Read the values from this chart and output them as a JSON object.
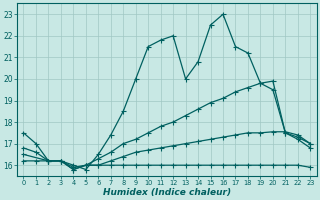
{
  "xlabel": "Humidex (Indice chaleur)",
  "background_color": "#c8e8e4",
  "grid_color": "#a0c8c4",
  "line_color": "#006060",
  "xlim": [
    -0.5,
    23.5
  ],
  "ylim": [
    15.5,
    23.5
  ],
  "yticks": [
    16,
    17,
    18,
    19,
    20,
    21,
    22,
    23
  ],
  "xticks": [
    0,
    1,
    2,
    3,
    4,
    5,
    6,
    7,
    8,
    9,
    10,
    11,
    12,
    13,
    14,
    15,
    16,
    17,
    18,
    19,
    20,
    21,
    22,
    23
  ],
  "line1_x": [
    0,
    1,
    2,
    3,
    4,
    5,
    6,
    7,
    8,
    9,
    10,
    11,
    12,
    13,
    14,
    15,
    16,
    17,
    18,
    19,
    20,
    21,
    22,
    23
  ],
  "line1_y": [
    17.5,
    17.0,
    16.2,
    16.2,
    16.0,
    15.8,
    16.5,
    17.4,
    18.5,
    20.0,
    21.5,
    21.8,
    22.0,
    20.0,
    20.8,
    22.5,
    23.0,
    21.5,
    21.2,
    19.8,
    19.5,
    17.5,
    17.2,
    16.8
  ],
  "line2_x": [
    0,
    1,
    2,
    3,
    4,
    5,
    6,
    7,
    8,
    9,
    10,
    11,
    12,
    13,
    14,
    15,
    16,
    17,
    18,
    19,
    20,
    21,
    22,
    23
  ],
  "line2_y": [
    16.2,
    16.2,
    16.2,
    16.2,
    15.8,
    16.0,
    16.0,
    16.0,
    16.0,
    16.0,
    16.0,
    16.0,
    16.0,
    16.0,
    16.0,
    16.0,
    16.0,
    16.0,
    16.0,
    16.0,
    16.0,
    16.0,
    16.0,
    15.9
  ],
  "line3_x": [
    0,
    1,
    2,
    3,
    4,
    5,
    6,
    7,
    8,
    9,
    10,
    11,
    12,
    13,
    14,
    15,
    16,
    17,
    18,
    19,
    20,
    21,
    22,
    23
  ],
  "line3_y": [
    16.8,
    16.6,
    16.2,
    16.2,
    15.9,
    16.0,
    16.3,
    16.6,
    17.0,
    17.2,
    17.5,
    17.8,
    18.0,
    18.3,
    18.6,
    18.9,
    19.1,
    19.4,
    19.6,
    19.8,
    19.9,
    17.5,
    17.3,
    17.0
  ],
  "line4_x": [
    0,
    2,
    3,
    4,
    5,
    6,
    7,
    8,
    9,
    10,
    11,
    12,
    13,
    14,
    15,
    16,
    17,
    18,
    19,
    20,
    21,
    22,
    23
  ],
  "line4_y": [
    16.5,
    16.2,
    16.2,
    15.8,
    16.0,
    16.0,
    16.2,
    16.4,
    16.6,
    16.7,
    16.8,
    16.9,
    17.0,
    17.1,
    17.2,
    17.3,
    17.4,
    17.5,
    17.5,
    17.55,
    17.55,
    17.4,
    17.0
  ]
}
